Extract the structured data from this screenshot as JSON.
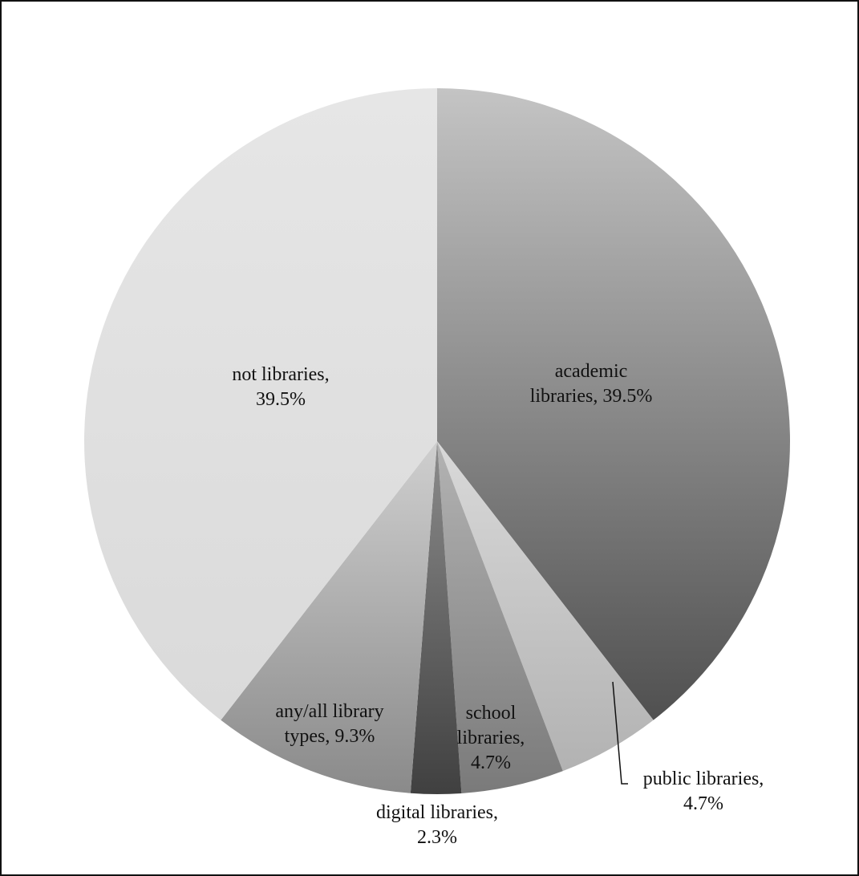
{
  "chart_data": {
    "type": "pie",
    "slices": [
      {
        "label_lines": [
          "academic",
          "libraries, 39.5%"
        ],
        "category": "academic libraries",
        "value": 39.5,
        "gradient": [
          "#c4c4c4",
          "#505050"
        ]
      },
      {
        "label_lines": [
          "public libraries,",
          "4.7%"
        ],
        "category": "public libraries",
        "value": 4.7,
        "gradient": [
          "#d9d9d9",
          "#b2b2b2"
        ]
      },
      {
        "label_lines": [
          "school",
          "libraries,",
          "4.7%"
        ],
        "category": "school libraries",
        "value": 4.7,
        "gradient": [
          "#b3b3b3",
          "#7a7a7a"
        ]
      },
      {
        "label_lines": [
          "digital libraries,",
          "2.3%"
        ],
        "category": "digital libraries",
        "value": 2.3,
        "gradient": [
          "#8c8c8c",
          "#404040"
        ]
      },
      {
        "label_lines": [
          "any/all library",
          "types, 9.3%"
        ],
        "category": "any/all library types",
        "value": 9.3,
        "gradient": [
          "#cfcfcf",
          "#8a8a8a"
        ]
      },
      {
        "label_lines": [
          "not libraries,",
          "39.5%"
        ],
        "category": "not libraries",
        "value": 39.5,
        "gradient": [
          "#e6e6e6",
          "#dadada"
        ]
      }
    ],
    "start_angle": "top",
    "direction": "clockwise",
    "legend": "none",
    "title": ""
  }
}
